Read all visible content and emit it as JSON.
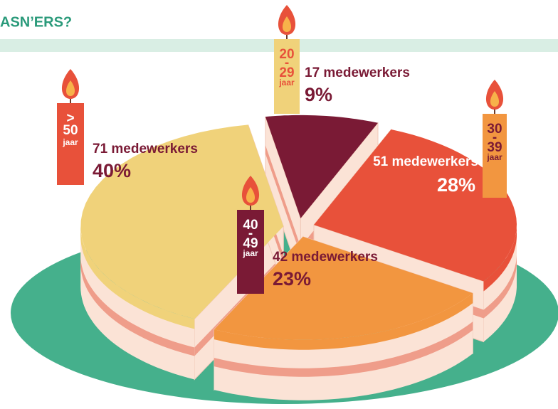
{
  "chart_data": {
    "type": "pie",
    "title": "ASN’ERS?",
    "categories": [
      [
        "20",
        "-",
        "29",
        "jaar"
      ],
      [
        "30",
        "-",
        "39",
        "jaar"
      ],
      [
        "40",
        "-",
        "49",
        "jaar"
      ],
      [
        ">",
        "50",
        "jaar"
      ]
    ],
    "values": [
      9,
      28,
      23,
      40
    ],
    "value_labels": [
      "9%",
      "28%",
      "23%",
      "40%"
    ],
    "counts": [
      17,
      51,
      42,
      71
    ],
    "count_labels": [
      "17 medewerkers",
      "51 medewerkers",
      "42 medewerkers",
      "71 medewerkers"
    ],
    "colors": [
      "#7a1a35",
      "#e8513a",
      "#f29640",
      "#f0d27a"
    ],
    "candle_colors": [
      "#f0d27a",
      "#f29640",
      "#7a1a35",
      "#e8513a"
    ]
  }
}
